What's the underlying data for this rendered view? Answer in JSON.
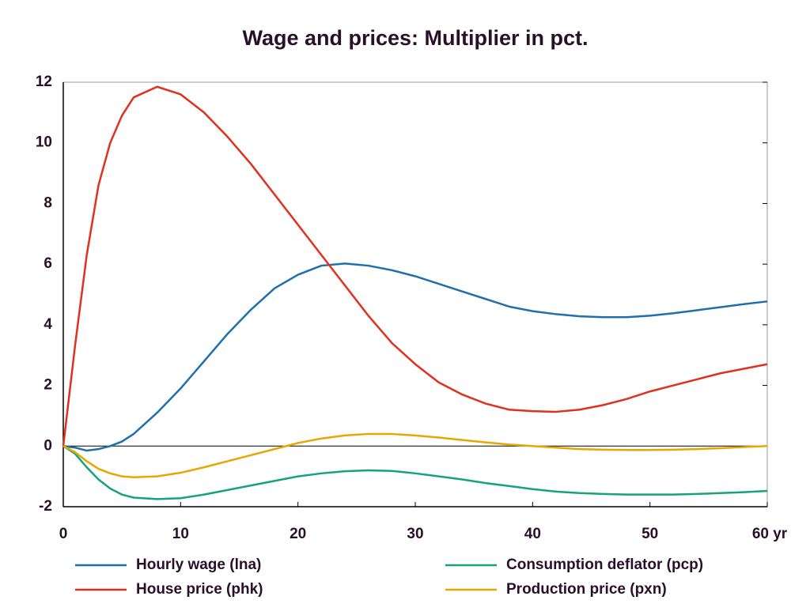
{
  "chart_data": {
    "type": "line",
    "title": "Wage and prices: Multiplier in pct.",
    "x": [
      0,
      1,
      2,
      3,
      4,
      5,
      6,
      8,
      10,
      12,
      14,
      16,
      18,
      20,
      22,
      24,
      26,
      28,
      30,
      32,
      34,
      36,
      38,
      40,
      42,
      44,
      46,
      48,
      50,
      52,
      54,
      56,
      58,
      60
    ],
    "series": [
      {
        "name": "Hourly wage (lna)",
        "color": "#1f6fad",
        "values": [
          0,
          -0.05,
          -0.15,
          -0.1,
          0,
          0.15,
          0.4,
          1.1,
          1.9,
          2.8,
          3.7,
          4.5,
          5.2,
          5.65,
          5.95,
          6.02,
          5.95,
          5.8,
          5.6,
          5.35,
          5.1,
          4.85,
          4.6,
          4.45,
          4.35,
          4.28,
          4.25,
          4.25,
          4.3,
          4.38,
          4.48,
          4.58,
          4.68,
          4.77
        ]
      },
      {
        "name": "House price (phk)",
        "color": "#e0301e",
        "values": [
          0,
          3.3,
          6.3,
          8.6,
          10,
          10.9,
          11.5,
          11.85,
          11.6,
          11,
          10.2,
          9.3,
          8.3,
          7.3,
          6.3,
          5.3,
          4.3,
          3.4,
          2.7,
          2.1,
          1.7,
          1.4,
          1.2,
          1.15,
          1.13,
          1.2,
          1.35,
          1.55,
          1.8,
          2.0,
          2.2,
          2.4,
          2.55,
          2.7
        ]
      },
      {
        "name": "Consumption deflator (pcp)",
        "color": "#16a37b",
        "values": [
          0,
          -0.25,
          -0.7,
          -1.1,
          -1.4,
          -1.6,
          -1.7,
          -1.75,
          -1.72,
          -1.6,
          -1.45,
          -1.3,
          -1.15,
          -1.0,
          -0.9,
          -0.83,
          -0.8,
          -0.82,
          -0.9,
          -1.0,
          -1.1,
          -1.22,
          -1.32,
          -1.42,
          -1.5,
          -1.55,
          -1.58,
          -1.6,
          -1.6,
          -1.6,
          -1.58,
          -1.55,
          -1.52,
          -1.48
        ]
      },
      {
        "name": "Production price (pxn)",
        "color": "#e6a800",
        "values": [
          0,
          -0.2,
          -0.5,
          -0.75,
          -0.9,
          -1.0,
          -1.03,
          -1.0,
          -0.88,
          -0.7,
          -0.5,
          -0.3,
          -0.1,
          0.1,
          0.25,
          0.35,
          0.4,
          0.4,
          0.35,
          0.28,
          0.2,
          0.12,
          0.05,
          0,
          -0.05,
          -0.1,
          -0.12,
          -0.13,
          -0.13,
          -0.12,
          -0.1,
          -0.07,
          -0.03,
          0
        ]
      }
    ],
    "xlim": [
      0,
      60
    ],
    "xticks": [
      0,
      10,
      20,
      30,
      40,
      50,
      {
        "value": 60,
        "label": "60 yr"
      }
    ],
    "ylim": [
      -2,
      12
    ],
    "yticks": [
      -2,
      0,
      2,
      4,
      6,
      8,
      10,
      12
    ]
  }
}
